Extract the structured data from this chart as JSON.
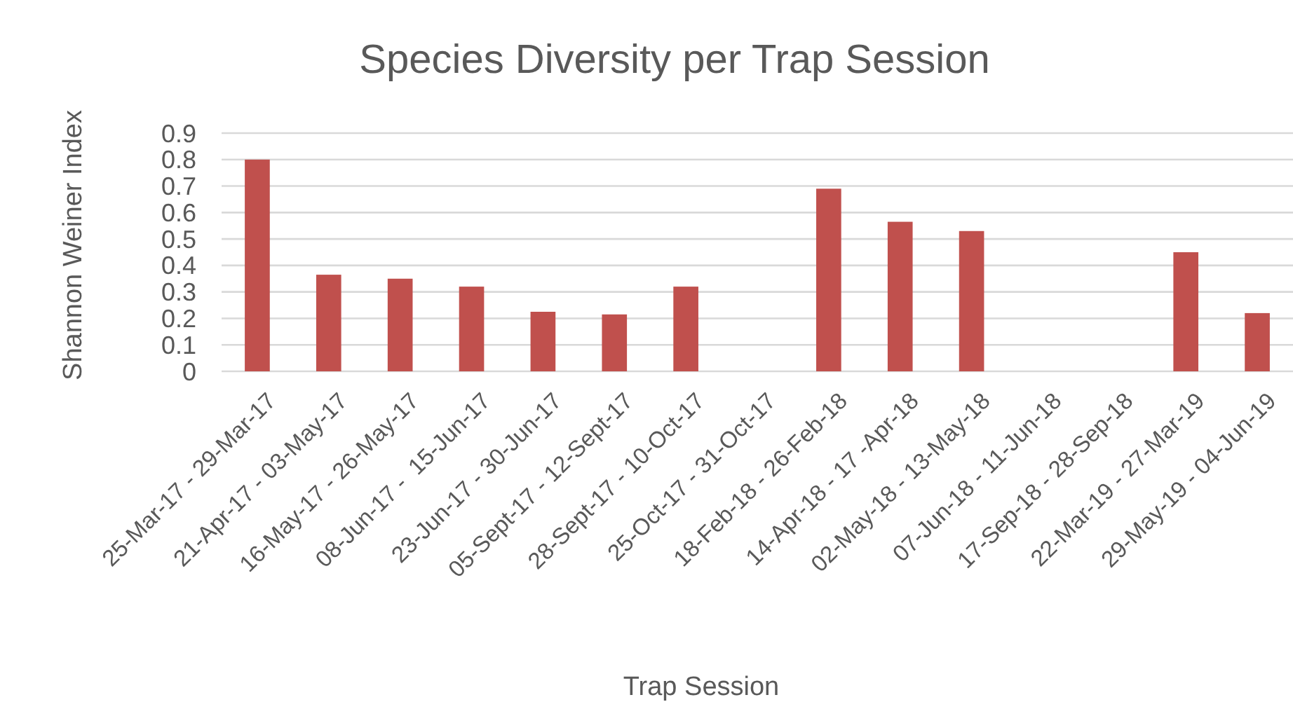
{
  "chart_data": {
    "type": "bar",
    "title": "Species Diversity per Trap Session",
    "xlabel": "Trap Session",
    "ylabel": "Shannon Weiner Index",
    "categories": [
      "25-Mar-17 - 29-Mar-17",
      "21-Apr-17 - 03-May-17",
      "16-May-17 - 26-May-17",
      "08-Jun-17 -  15-Jun-17",
      "23-Jun-17 - 30-Jun-17",
      "05-Sept-17 - 12-Sept-17",
      "28-Sept-17 - 10-Oct-17",
      "25-Oct-17 - 31-Oct-17",
      "18-Feb-18 - 26-Feb-18",
      "14-Apr-18 - 17 -Apr-18",
      "02-May-18 - 13-May-18",
      "07-Jun-18 - 11-Jun-18",
      "17-Sep-18 - 28-Sep-18",
      "22-Mar-19 - 27-Mar-19",
      "29-May-19 - 04-Jun-19"
    ],
    "values": [
      0.8,
      0.365,
      0.35,
      0.32,
      0.225,
      0.215,
      0.32,
      0,
      0.69,
      0.565,
      0.53,
      0,
      0,
      0.45,
      0.22
    ],
    "color": "#c0504d",
    "ylim": [
      0,
      0.9
    ],
    "yticks": [
      0,
      0.1,
      0.2,
      0.3,
      0.4,
      0.5,
      0.6,
      0.7,
      0.8,
      0.9
    ],
    "grid": "y"
  }
}
